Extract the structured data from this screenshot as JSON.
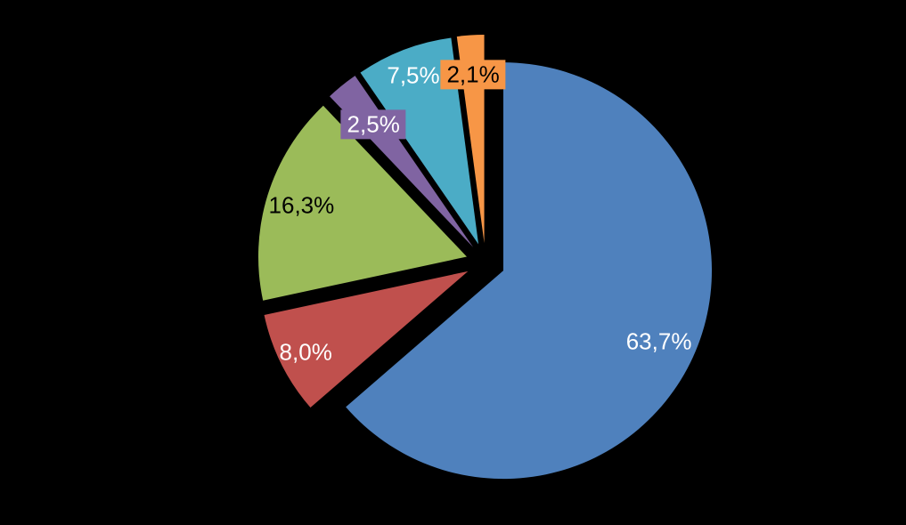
{
  "chart_data": {
    "type": "pie",
    "title": "",
    "legend": "none",
    "background": "#000000",
    "start_angle_deg": 0,
    "direction": "clockwise",
    "exploded": true,
    "label_format": "percent-comma-decimal",
    "slices": [
      {
        "label": "63,7%",
        "value": 63.7,
        "color": "#4F81BD",
        "label_color": "#FFFFFF",
        "boxed": false,
        "label_radius_factor": 0.82
      },
      {
        "label": "8,0%",
        "value": 8.0,
        "color": "#C0504D",
        "label_color": "#FFFFFF",
        "boxed": false,
        "label_radius_factor": 0.87
      },
      {
        "label": "16,3%",
        "value": 16.3,
        "color": "#9BBB59",
        "label_color": "#000000",
        "boxed": false,
        "label_radius_factor": 0.83
      },
      {
        "label": "2,5%",
        "value": 2.5,
        "color": "#8064A2",
        "label_color": "#FFFFFF",
        "boxed": true,
        "label_radius_factor": 0.76
      },
      {
        "label": "7,5%",
        "value": 7.5,
        "color": "#4BACC6",
        "label_color": "#FFFFFF",
        "boxed": false,
        "label_radius_factor": 0.87
      },
      {
        "label": "2,1%",
        "value": 2.1,
        "color": "#F79646",
        "label_color": "#000000",
        "boxed": true,
        "label_radius_factor": 0.81
      }
    ]
  }
}
